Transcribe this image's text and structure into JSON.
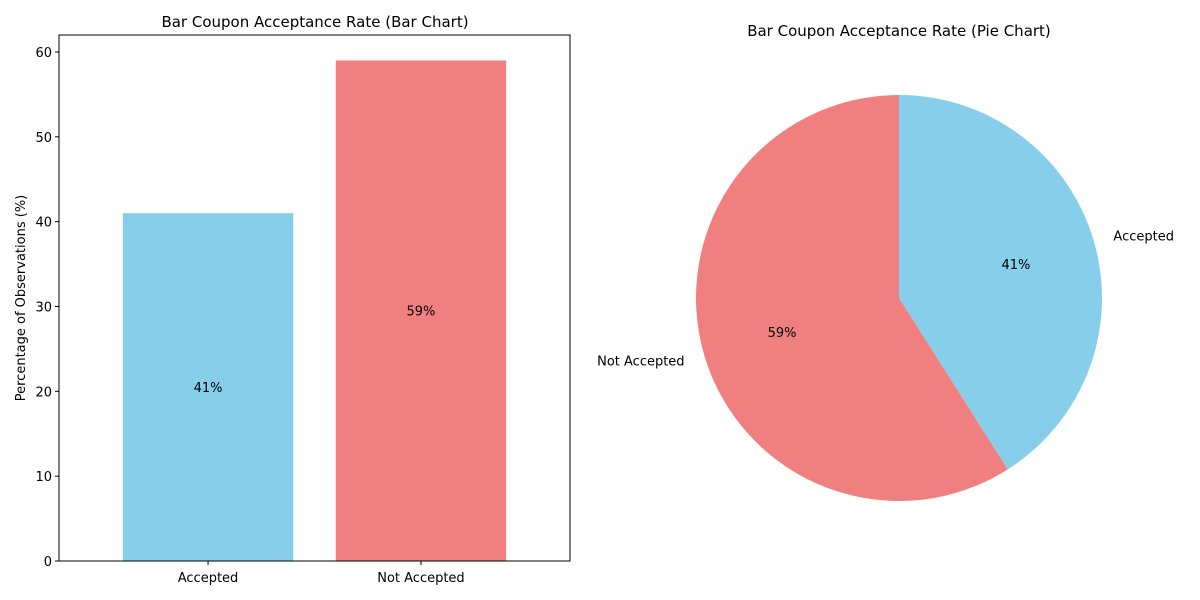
{
  "chart_data": [
    {
      "type": "bar",
      "title": "Bar Coupon Acceptance Rate (Bar Chart)",
      "xlabel": "",
      "ylabel": "Percentage of Observations (%)",
      "categories": [
        "Accepted",
        "Not Accepted"
      ],
      "values": [
        41,
        59
      ],
      "data_labels": [
        "41%",
        "59%"
      ],
      "colors": [
        "#87CEEB",
        "#F08080"
      ],
      "ylim": [
        0,
        62
      ],
      "yticks": [
        0,
        10,
        20,
        30,
        40,
        50,
        60
      ],
      "grid": false
    },
    {
      "type": "pie",
      "title": "Bar Coupon Acceptance Rate (Pie Chart)",
      "labels": [
        "Accepted",
        "Not Accepted"
      ],
      "values": [
        41,
        59
      ],
      "data_labels": [
        "41%",
        "59%"
      ],
      "colors": [
        "#87CEEB",
        "#F08080"
      ],
      "start_angle_deg": 90,
      "direction": "clockwise"
    }
  ]
}
